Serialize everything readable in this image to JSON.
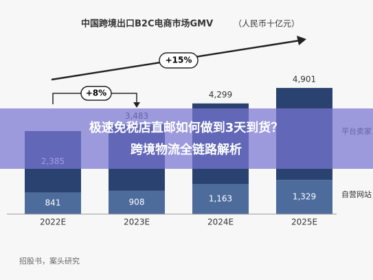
{
  "chart_data": {
    "type": "stacked_bar",
    "title": "中国跨境出口B2C电商市场GMV",
    "subtitle": "（人民币十亿元）",
    "categories": [
      "2022E",
      "2023E",
      "2024E",
      "2025E"
    ],
    "series": [
      {
        "name": "自营网站",
        "color": "#4d6c9c",
        "values": [
          841,
          908,
          1163,
          1329
        ],
        "value_labels": [
          "841",
          "908",
          "1,163",
          "1,329"
        ]
      },
      {
        "name": "平台卖家",
        "color": "#2a4270",
        "values": [
          2385,
          2575,
          3136,
          3572
        ],
        "value_labels": [
          "2,385",
          null,
          null,
          null
        ]
      }
    ],
    "total_labels": [
      null,
      "3,483",
      "4,299",
      "4,901"
    ],
    "ylim": [
      0,
      7250
    ],
    "annotations": [
      "+8%",
      "+15%"
    ],
    "source": "招股书，案头研究",
    "banner": [
      "极速免税店直邮如何做到3天到货？",
      "跨境物流全链路解析"
    ]
  }
}
